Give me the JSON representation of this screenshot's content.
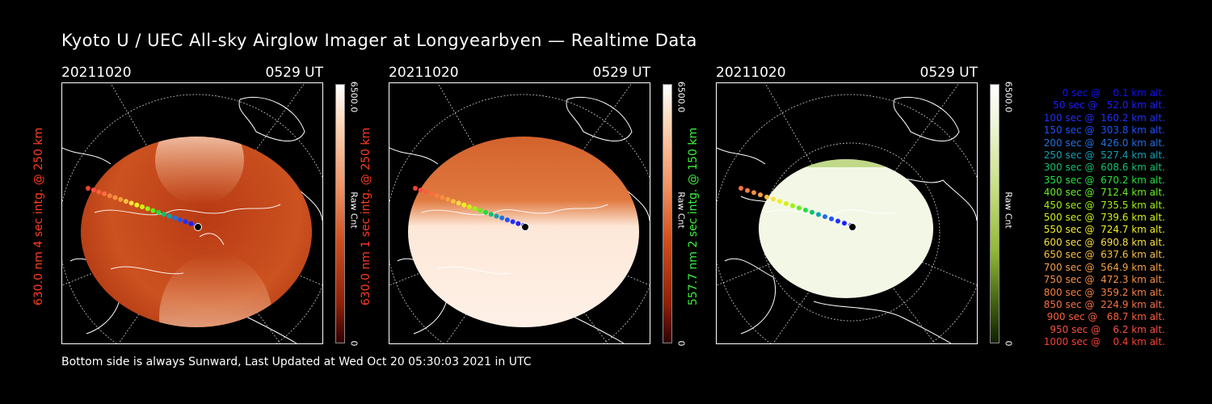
{
  "title": "Kyoto U / UEC All-sky Airglow Imager at Longyearbyen — Realtime Data",
  "footer": "Bottom side is always Sunward, Last Updated at Wed Oct 20 05:30:03 2021 in UTC",
  "panels": [
    {
      "date": "20211020",
      "time": "0529 UT",
      "ylabel": "630.0 nm 4 sec intg. @ 250 km",
      "ylabel_color": "#ff3c1e",
      "colorbar_max": "6500.0",
      "colorbar_unit": "Raw Cnt",
      "colorbar_min": "0",
      "colormap": "red",
      "track_points": 21
    },
    {
      "date": "20211020",
      "time": "0529 UT",
      "ylabel": "630.0 nm 1 sec intg. @ 250 km",
      "ylabel_color": "#ff3c1e",
      "colorbar_max": "6500.0",
      "colorbar_unit": "Raw Cnt",
      "colorbar_min": "0",
      "colormap": "red",
      "track_points": 21
    },
    {
      "date": "20211020",
      "time": "0529 UT",
      "ylabel": "557.7 nm 2 sec intg. @ 150 km",
      "ylabel_color": "#3cf03c",
      "colorbar_max": "6500.0",
      "colorbar_unit": "Raw Cnt",
      "colorbar_min": "0",
      "colormap": "green",
      "track_points": 18
    }
  ],
  "legend": [
    {
      "text": "   0 sec @    0.1 km alt.",
      "color": "#1010ff"
    },
    {
      "text": "  50 sec @   52.0 km alt.",
      "color": "#1e1eff"
    },
    {
      "text": " 100 sec @  160.2 km alt.",
      "color": "#2030ff"
    },
    {
      "text": " 150 sec @  303.8 km alt.",
      "color": "#2050ff"
    },
    {
      "text": " 200 sec @  426.0 km alt.",
      "color": "#2070e0"
    },
    {
      "text": " 250 sec @  527.4 km alt.",
      "color": "#10a0b0"
    },
    {
      "text": " 300 sec @  608.6 km alt.",
      "color": "#10c070"
    },
    {
      "text": " 350 sec @  670.2 km alt.",
      "color": "#20e040"
    },
    {
      "text": " 400 sec @  712.4 km alt.",
      "color": "#60f020"
    },
    {
      "text": " 450 sec @  735.5 km alt.",
      "color": "#a0f010"
    },
    {
      "text": " 500 sec @  739.6 km alt.",
      "color": "#d0f010"
    },
    {
      "text": " 550 sec @  724.7 km alt.",
      "color": "#f0f020"
    },
    {
      "text": " 600 sec @  690.8 km alt.",
      "color": "#f8e040"
    },
    {
      "text": " 650 sec @  637.6 km alt.",
      "color": "#f8c040"
    },
    {
      "text": " 700 sec @  564.9 km alt.",
      "color": "#f8a040"
    },
    {
      "text": " 750 sec @  472.3 km alt.",
      "color": "#f89040"
    },
    {
      "text": " 800 sec @  359.2 km alt.",
      "color": "#f88040"
    },
    {
      "text": " 850 sec @  224.9 km alt.",
      "color": "#f87040"
    },
    {
      "text": " 900 sec @   68.7 km alt.",
      "color": "#f86040"
    },
    {
      "text": " 950 sec @    6.2 km alt.",
      "color": "#f85040"
    },
    {
      "text": "1000 sec @    0.4 km alt.",
      "color": "#f84030"
    }
  ]
}
